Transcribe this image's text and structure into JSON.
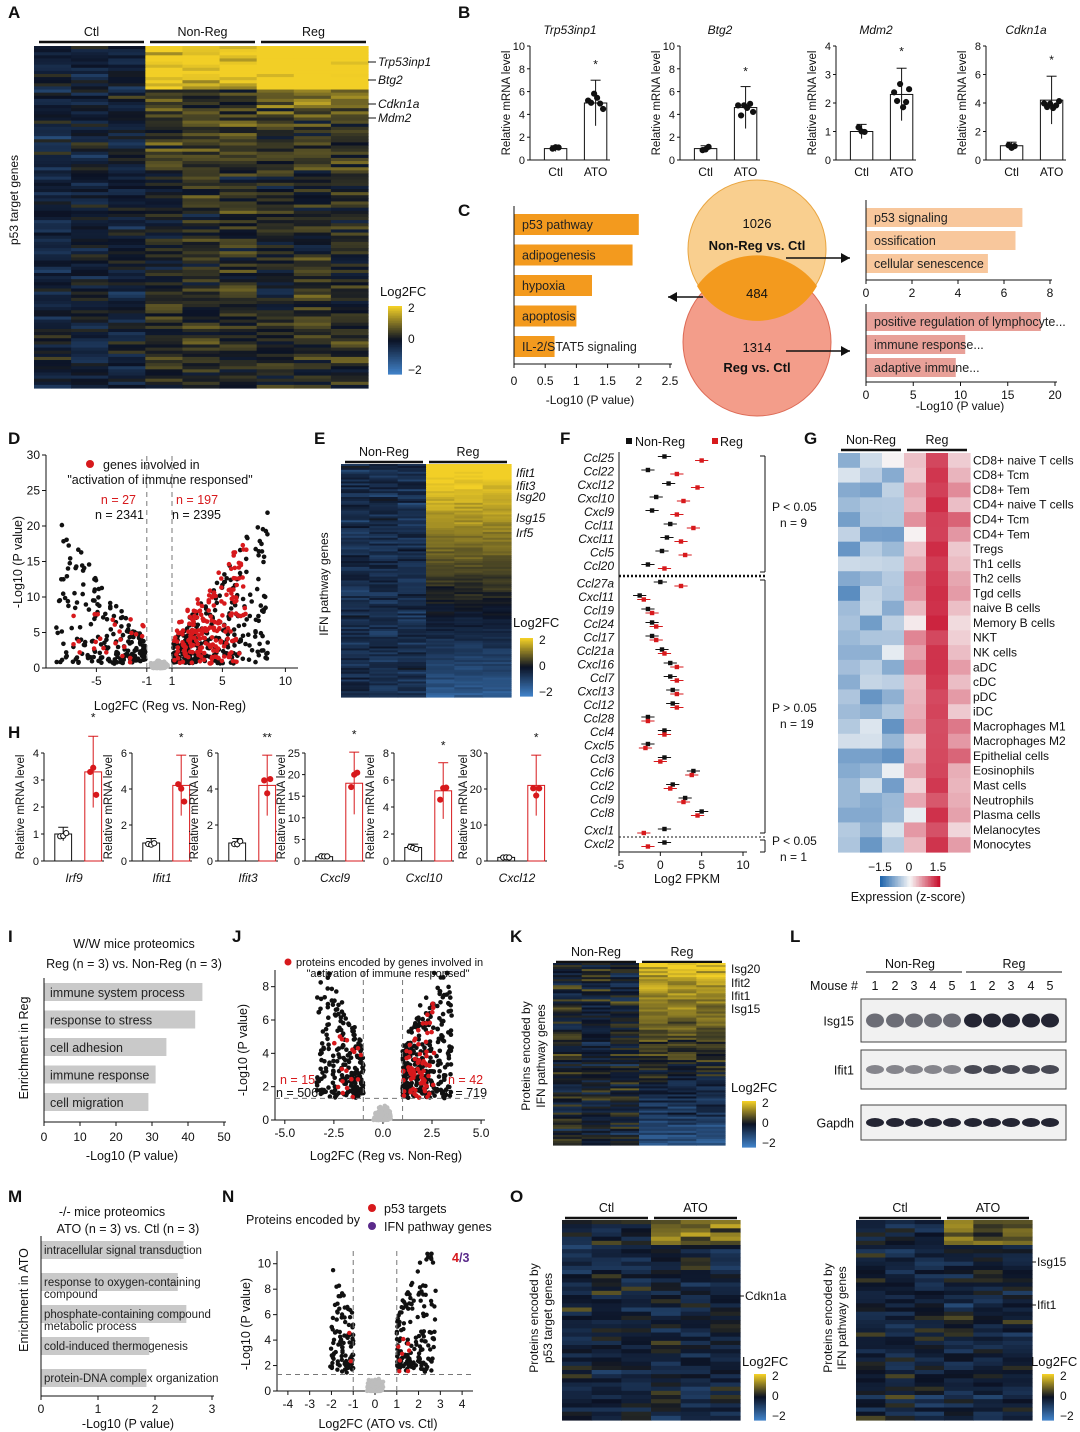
{
  "panel_letters": [
    "A",
    "B",
    "C",
    "D",
    "E",
    "F",
    "G",
    "H",
    "I",
    "J",
    "K",
    "L",
    "M",
    "N",
    "O"
  ],
  "palette": {
    "accent_red": "#d7191c",
    "gold": "#f2cf26",
    "navy": "#0b1224",
    "blue": "#2f6fb5",
    "orange": "#f39a1e",
    "peach": "#f8c79c",
    "salmon": "#e8a098",
    "gray": "#c9c9c9"
  },
  "common": {
    "log2fc_label": "Log2FC",
    "rel_mrna": "Relative mRNA level",
    "ctl": "Ctl",
    "ato": "ATO",
    "non_reg": "Non-Reg",
    "reg": "Reg",
    "neglog10p_axis": "-Log10 (P value)",
    "scale_ticks": [
      "2",
      "0",
      "−2"
    ]
  },
  "chart_data": [
    {
      "panel": "A",
      "type": "heatmap",
      "groups": [
        "Ctl",
        "Non-Reg",
        "Reg"
      ],
      "ylabel": "p53 target genes",
      "row_labels": [
        "Trp53inp1",
        "Btg2",
        "Cdkn1a",
        "Mdm2"
      ],
      "scale": {
        "title": "Log2FC",
        "ticks": [
          "2",
          "0",
          "−2"
        ]
      }
    },
    {
      "panel": "B",
      "type": "bar",
      "ylabel": "Relative mRNA level",
      "categories": [
        "Ctl",
        "ATO"
      ],
      "subplots": [
        {
          "title": "Trp53inp1",
          "values": [
            1.0,
            5.0
          ],
          "ylim": [
            0,
            10
          ],
          "yticks": [
            "0",
            "2",
            "4",
            "6",
            "8",
            "10"
          ],
          "sig": "*"
        },
        {
          "title": "Btg2",
          "values": [
            1.0,
            4.6
          ],
          "ylim": [
            0,
            10
          ],
          "yticks": [
            "0",
            "2",
            "4",
            "6",
            "8",
            "10"
          ],
          "sig": "*"
        },
        {
          "title": "Mdm2",
          "values": [
            1.0,
            2.3
          ],
          "ylim": [
            0,
            4
          ],
          "yticks": [
            "0",
            "1",
            "2",
            "3",
            "4"
          ],
          "sig": "*"
        },
        {
          "title": "Cdkn1a",
          "values": [
            1.0,
            4.2
          ],
          "ylim": [
            0,
            8
          ],
          "yticks": [
            "0",
            "2",
            "4",
            "6",
            "8"
          ],
          "sig": "*"
        }
      ]
    },
    {
      "panel": "C",
      "type": "bar",
      "xlabel": "-Log10 (P value)",
      "venn": {
        "top_count": "1026",
        "top_label": "Non-Reg vs. Ctl",
        "overlap": "484",
        "bottom_count": "1314",
        "bottom_label": "Reg vs. Ctl"
      },
      "subplots": [
        {
          "name": "overlap",
          "categories": [
            "p53 pathway",
            "adipogenesis",
            "hypoxia",
            "apoptosis",
            "IL-2/STAT5 signaling"
          ],
          "values": [
            2.0,
            1.9,
            1.25,
            1.0,
            0.65
          ],
          "xlim": [
            0,
            2.5
          ],
          "xticks": [
            "0",
            "0.5",
            "1",
            "1.5",
            "2",
            "2.5"
          ]
        },
        {
          "name": "Non-Reg vs. Ctl",
          "categories": [
            "p53 signaling",
            "ossification",
            "cellular senescence"
          ],
          "values": [
            6.8,
            6.5,
            5.3
          ],
          "xlim": [
            0,
            8
          ],
          "xticks": [
            "0",
            "2",
            "4",
            "6",
            "8"
          ]
        },
        {
          "name": "Reg vs. Ctl",
          "categories": [
            "positive regulation of lymphocyte...",
            "immune response...",
            "adaptive immune..."
          ],
          "values": [
            18.5,
            10.5,
            9.5
          ],
          "xlim": [
            0,
            20
          ],
          "xticks": [
            "0",
            "5",
            "10",
            "15",
            "20"
          ]
        }
      ]
    },
    {
      "panel": "D",
      "type": "scatter",
      "legend": "genes involved in",
      "legend2": "\"activation of immune responsed\"",
      "xlabel": "Log2FC (Reg vs. Non-Reg)",
      "ylabel": "-Log10 (P value)",
      "xlim": [
        -9,
        11
      ],
      "ylim": [
        0,
        30
      ],
      "xticks": [
        "-5",
        "-1",
        "1",
        "5",
        "10"
      ],
      "yticks": [
        "0",
        "5",
        "10",
        "15",
        "20",
        "25",
        "30"
      ],
      "counts": {
        "left_red": "n = 27",
        "left_black": "n = 2341",
        "right_red": "n = 197",
        "right_black": "n = 2395"
      }
    },
    {
      "panel": "E",
      "type": "heatmap",
      "groups": [
        "Non-Reg",
        "Reg"
      ],
      "ylabel": "IFN pathway genes",
      "row_labels": [
        "Ifit1",
        "Ifit3",
        "Isg20",
        "Isg15",
        "Irf5"
      ],
      "scale": {
        "title": "Log2FC",
        "ticks": [
          "2",
          "0",
          "−2"
        ]
      }
    },
    {
      "panel": "F",
      "type": "scatter",
      "legend": [
        "Non-Reg",
        "Reg"
      ],
      "xlabel": "Log2 FPKM",
      "xlim": [
        -5,
        10
      ],
      "xticks": [
        "-5",
        "0",
        "5",
        "10"
      ],
      "genes": [
        "Ccl25",
        "Ccl22",
        "Cxcl12",
        "Cxcl10",
        "Cxcl9",
        "Ccl11",
        "Cxcl11",
        "Ccl5",
        "Ccl20",
        "Ccl27a",
        "Cxcl11",
        "Ccl19",
        "Ccl24",
        "Ccl17",
        "Ccl21a",
        "Cxcl16",
        "Ccl7",
        "Cxcl13",
        "Ccl12",
        "Ccl28",
        "Ccl4",
        "Cxcl5",
        "Ccl3",
        "Ccl6",
        "Ccl2",
        "Ccl9",
        "Ccl8",
        "Cxcl1",
        "Cxcl2"
      ],
      "nonreg": [
        0.5,
        -1.5,
        1.0,
        -0.5,
        -1.0,
        1.2,
        0.8,
        0.2,
        -1.5,
        0.0,
        -2.5,
        -1.5,
        -1.0,
        -1.0,
        0.2,
        1.2,
        1.2,
        1.5,
        1.5,
        -1.5,
        0.5,
        -1.5,
        0.5,
        4.0,
        1.5,
        3.0,
        5.0,
        0.5,
        0.5
      ],
      "reg": [
        5.0,
        2.0,
        4.5,
        2.8,
        2.0,
        4.0,
        2.5,
        3.0,
        0.5,
        2.5,
        -2.0,
        -1.0,
        -0.5,
        -0.5,
        0.5,
        2.0,
        2.0,
        2.0,
        2.0,
        -1.5,
        0.5,
        -1.8,
        0.0,
        3.8,
        1.2,
        2.8,
        4.5,
        -2.0,
        -1.5
      ],
      "groups": [
        {
          "label": "P < 0.05",
          "n": "n = 9"
        },
        {
          "label": "P > 0.05",
          "n": "n = 19"
        },
        {
          "label": "P < 0.05",
          "n": "n = 1"
        }
      ]
    },
    {
      "panel": "G",
      "type": "bar",
      "ylabel": "Relative mRNA level",
      "subplots": [
        {
          "title": "Irf9",
          "values": [
            1.0,
            3.3
          ],
          "ylim": [
            0,
            4
          ],
          "yticks": [
            "0",
            "1",
            "2",
            "3",
            "4"
          ],
          "sig": "*"
        },
        {
          "title": "Ifit1",
          "values": [
            1.0,
            4.2
          ],
          "ylim": [
            0,
            6
          ],
          "yticks": [
            "0",
            "2",
            "4",
            "6"
          ],
          "sig": "*"
        },
        {
          "title": "Ifit3",
          "values": [
            1.0,
            4.2
          ],
          "ylim": [
            0,
            6
          ],
          "yticks": [
            "0",
            "2",
            "4",
            "6"
          ],
          "sig": "**"
        },
        {
          "title": "Cxcl9",
          "values": [
            1.0,
            18.0
          ],
          "ylim": [
            0,
            25
          ],
          "yticks": [
            "0",
            "5",
            "10",
            "15",
            "20",
            "25"
          ],
          "sig": "*"
        },
        {
          "title": "Cxcl10",
          "values": [
            1.0,
            5.2
          ],
          "ylim": [
            0,
            8
          ],
          "yticks": [
            "0",
            "2",
            "4",
            "6",
            "8"
          ],
          "sig": "*"
        },
        {
          "title": "Cxcl12",
          "values": [
            1.0,
            21.0
          ],
          "ylim": [
            0,
            30
          ],
          "yticks": [
            "0",
            "10",
            "20",
            "30"
          ],
          "sig": "*"
        }
      ]
    },
    {
      "panel": "H",
      "type": "heatmap",
      "groups": [
        "Non-Reg",
        "Reg"
      ],
      "rows": [
        "CD8+ naive T cells",
        "CD8+ Tcm",
        "CD8+ Tem",
        "CD4+ naive T cells",
        "CD4+ Tcm",
        "CD4+ Tem",
        "Tregs",
        "Th1 cells",
        "Th2 cells",
        "Tgd cells",
        "naive B cells",
        "Memory B cells",
        "NKT",
        "NK cells",
        "aDC",
        "cDC",
        "pDC",
        "iDC",
        "Macrophages M1",
        "Macrophages M2",
        "Epithelial cells",
        "Eosinophils",
        "Mast cells",
        "Neutrophils",
        "Plasma cells",
        "Melanocytes",
        "Monocytes"
      ],
      "scale": {
        "title": "Expression (z-score)",
        "ticks": [
          "−1.5",
          "0",
          "1.5"
        ]
      }
    },
    {
      "panel": "I",
      "type": "bar",
      "title": "W/W mice proteomics",
      "subtitle": "Reg (n = 3) vs. Non-Reg (n = 3)",
      "ylabel": "Enrichment in Reg",
      "xlabel": "-Log10 (P value)",
      "categories": [
        "immune system process",
        "response to stress",
        "cell adhesion",
        "immune response",
        "cell migration"
      ],
      "values": [
        44,
        42,
        34,
        31,
        29
      ],
      "xlim": [
        0,
        50
      ],
      "xticks": [
        "0",
        "10",
        "20",
        "30",
        "40",
        "50"
      ]
    },
    {
      "panel": "J",
      "type": "scatter",
      "legend": "proteins encoded by genes involved in",
      "legend2": "\"activation of immune responsed\"",
      "xlabel": "Log2FC (Reg vs. Non-Reg)",
      "ylabel": "-Log10 (P value)",
      "xlim": [
        -5.5,
        5.2
      ],
      "ylim": [
        0,
        9
      ],
      "xticks": [
        "-5.0",
        "-2.5",
        "0.0",
        "2.5",
        "5.0"
      ],
      "yticks": [
        "0",
        "2",
        "4",
        "6",
        "8"
      ],
      "counts": {
        "left_red": "n = 15",
        "left_black": "n = 506",
        "right_red": "n = 42",
        "right_black": "n = 719"
      }
    },
    {
      "panel": "K",
      "type": "heatmap",
      "groups": [
        "Non-Reg",
        "Reg"
      ],
      "ylabel": "Proteins encoded by",
      "ylabel2": "IFN pathway genes",
      "row_labels": [
        "Isg20",
        "Ifit2",
        "Ifit1",
        "Isg15"
      ],
      "scale": {
        "title": "Log2FC",
        "ticks": [
          "2",
          "0",
          "−2"
        ]
      }
    },
    {
      "panel": "L",
      "type": "table",
      "mouse_label": "Mouse #",
      "groups": [
        "Non-Reg",
        "Reg"
      ],
      "lanes": [
        "1",
        "2",
        "3",
        "4",
        "5",
        "1",
        "2",
        "3",
        "4",
        "5"
      ],
      "bands": [
        "Isg15",
        "Ifit1",
        "Gapdh"
      ]
    },
    {
      "panel": "M",
      "type": "bar",
      "title": "-/- mice proteomics",
      "subtitle": "ATO (n = 3) vs. Ctl (n = 3)",
      "ylabel": "Enrichment in ATO",
      "xlabel": "-Log10 (P value)",
      "categories": [
        "intracellular signal transduction",
        "response to oxygen-containing compound",
        "phosphate-containing compound metabolic process",
        "cold-induced thermogenesis",
        "protein-DNA complex organization"
      ],
      "category_lines": [
        [
          "intracellular signal transduction"
        ],
        [
          "response to oxygen-containing",
          "compound"
        ],
        [
          "phosphate-containing compound",
          "metabolic process"
        ],
        [
          "cold-induced thermogenesis"
        ],
        [
          "protein-DNA complex organization"
        ]
      ],
      "values": [
        2.5,
        2.4,
        2.55,
        1.9,
        1.85
      ],
      "xlim": [
        0,
        3
      ],
      "xticks": [
        "0",
        "1",
        "2",
        "3"
      ]
    },
    {
      "panel": "N",
      "type": "scatter",
      "title": "Proteins encoded by",
      "legend": [
        "p53 targets",
        "IFN pathway genes"
      ],
      "badge_a": "4",
      "badge_b": "/3",
      "xlabel": "Log2FC (ATO vs. Ctl)",
      "ylabel": "-Log10 (P value)",
      "xlim": [
        -4.5,
        4.5
      ],
      "ylim": [
        0,
        11
      ],
      "xticks": [
        "-4",
        "-3",
        "-2",
        "-1",
        "0",
        "1",
        "2",
        "3",
        "4"
      ],
      "yticks": [
        "0",
        "2",
        "4",
        "6",
        "8",
        "10"
      ]
    },
    {
      "panel": "O",
      "type": "heatmap",
      "subplots": [
        {
          "groups": [
            "Ctl",
            "ATO"
          ],
          "ylabel": "Proteins encoded by",
          "ylabel2": "p53 target genes",
          "row_labels": [
            "Cdkn1a"
          ]
        },
        {
          "groups": [
            "Ctl",
            "ATO"
          ],
          "ylabel": "Proteins encoded by",
          "ylabel2": "IFN pathway genes",
          "row_labels": [
            "Isg15",
            "Ifit1"
          ]
        }
      ],
      "scale": {
        "title": "Log2FC",
        "ticks": [
          "2",
          "0",
          "−2"
        ]
      }
    }
  ]
}
